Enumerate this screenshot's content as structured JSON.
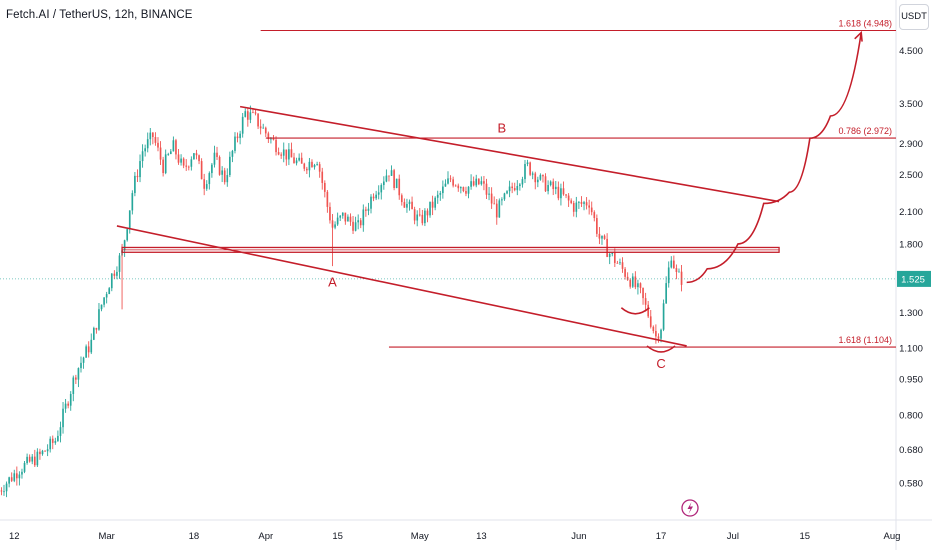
{
  "header": {
    "title": "Fetch.AI / TetherUS, 12h, BINANCE",
    "currency": "USDT"
  },
  "colors": {
    "up": "#26a69a",
    "down": "#ef5350",
    "drawing": "#c41e2a",
    "price_line": "#26a69a",
    "axis_text": "#131722"
  },
  "chart_data": {
    "type": "candlestick",
    "title": "Fetch.AI / TetherUS, 12h, BINANCE",
    "y_scale": "log",
    "ylim": [
      0.54,
      5.3
    ],
    "xlim": [
      "2024-02-10",
      "2024-08-01"
    ],
    "y_ticks": [
      {
        "value": 4.5,
        "label": "4.500"
      },
      {
        "value": 3.5,
        "label": "3.500"
      },
      {
        "value": 2.9,
        "label": "2.900"
      },
      {
        "value": 2.5,
        "label": "2.500"
      },
      {
        "value": 2.1,
        "label": "2.100"
      },
      {
        "value": 1.8,
        "label": "1.800"
      },
      {
        "value": 1.3,
        "label": "1.300"
      },
      {
        "value": 1.1,
        "label": "1.100"
      },
      {
        "value": 0.95,
        "label": "0.950"
      },
      {
        "value": 0.8,
        "label": "0.800"
      },
      {
        "value": 0.68,
        "label": "0.680"
      },
      {
        "value": 0.58,
        "label": "0.580"
      }
    ],
    "x_ticks": [
      {
        "date": "2024-02-12",
        "label": "12"
      },
      {
        "date": "2024-03-01",
        "label": "Mar"
      },
      {
        "date": "2024-03-18",
        "label": "18"
      },
      {
        "date": "2024-04-01",
        "label": "Apr"
      },
      {
        "date": "2024-04-15",
        "label": "15"
      },
      {
        "date": "2024-05-01",
        "label": "May"
      },
      {
        "date": "2024-05-13",
        "label": "13"
      },
      {
        "date": "2024-06-01",
        "label": "Jun"
      },
      {
        "date": "2024-06-17",
        "label": "17"
      },
      {
        "date": "2024-07-01",
        "label": "Jul"
      },
      {
        "date": "2024-07-15",
        "label": "15"
      },
      {
        "date": "2024-08-01",
        "label": "Aug"
      }
    ],
    "last_price": {
      "value": 1.525,
      "label": "1.525"
    },
    "price_path": [
      [
        "2024-02-09",
        0.56
      ],
      [
        "2024-02-13",
        0.62
      ],
      [
        "2024-02-17",
        0.66
      ],
      [
        "2024-02-20",
        0.71
      ],
      [
        "2024-02-22",
        0.83
      ],
      [
        "2024-02-24",
        0.98
      ],
      [
        "2024-02-27",
        1.13
      ],
      [
        "2024-02-29",
        1.35
      ],
      [
        "2024-03-02",
        1.55
      ],
      [
        "2024-03-04",
        1.72
      ],
      [
        "2024-03-06",
        2.3
      ],
      [
        "2024-03-08",
        2.8
      ],
      [
        "2024-03-10",
        3.0
      ],
      [
        "2024-03-12",
        2.6
      ],
      [
        "2024-03-14",
        2.85
      ],
      [
        "2024-03-16",
        2.55
      ],
      [
        "2024-03-18",
        2.8
      ],
      [
        "2024-03-20",
        2.4
      ],
      [
        "2024-03-22",
        2.7
      ],
      [
        "2024-03-24",
        2.45
      ],
      [
        "2024-03-26",
        2.9
      ],
      [
        "2024-03-28",
        3.35
      ],
      [
        "2024-03-30",
        3.25
      ],
      [
        "2024-04-02",
        2.95
      ],
      [
        "2024-04-05",
        2.75
      ],
      [
        "2024-04-08",
        2.6
      ],
      [
        "2024-04-11",
        2.7
      ],
      [
        "2024-04-13",
        2.15
      ],
      [
        "2024-04-14",
        1.95
      ],
      [
        "2024-04-16",
        2.05
      ],
      [
        "2024-04-19",
        1.95
      ],
      [
        "2024-04-22",
        2.3
      ],
      [
        "2024-04-25",
        2.55
      ],
      [
        "2024-04-28",
        2.2
      ],
      [
        "2024-05-01",
        2.0
      ],
      [
        "2024-05-04",
        2.2
      ],
      [
        "2024-05-07",
        2.45
      ],
      [
        "2024-05-10",
        2.35
      ],
      [
        "2024-05-13",
        2.4
      ],
      [
        "2024-05-16",
        2.1
      ],
      [
        "2024-05-19",
        2.35
      ],
      [
        "2024-05-22",
        2.6
      ],
      [
        "2024-05-25",
        2.4
      ],
      [
        "2024-05-28",
        2.3
      ],
      [
        "2024-05-31",
        2.15
      ],
      [
        "2024-06-03",
        2.2
      ],
      [
        "2024-06-05",
        1.85
      ],
      [
        "2024-06-07",
        1.72
      ],
      [
        "2024-06-09",
        1.62
      ],
      [
        "2024-06-11",
        1.52
      ],
      [
        "2024-06-13",
        1.42
      ],
      [
        "2024-06-15",
        1.25
      ],
      [
        "2024-06-16",
        1.16
      ],
      [
        "2024-06-17",
        1.22
      ],
      [
        "2024-06-18",
        1.48
      ],
      [
        "2024-06-19",
        1.72
      ],
      [
        "2024-06-20",
        1.55
      ],
      [
        "2024-06-21",
        1.525
      ]
    ],
    "annotations": {
      "wave_labels": [
        {
          "text": "A",
          "date": "2024-04-14",
          "price": 1.47
        },
        {
          "text": "B",
          "date": "2024-05-17",
          "price": 3.05
        },
        {
          "text": "C",
          "date": "2024-06-17",
          "price": 1.0
        }
      ],
      "fib_levels": [
        {
          "label": "1.618 (4.948)",
          "value": 4.948,
          "from": "2024-03-31"
        },
        {
          "label": "0.786 (2.972)",
          "value": 2.972,
          "from": "2024-04-01"
        },
        {
          "label": "1.618 (1.104)",
          "value": 1.104,
          "from": "2024-04-25"
        }
      ],
      "channel_upper": [
        [
          "2024-03-27",
          3.45
        ],
        [
          "2024-07-10",
          2.2
        ]
      ],
      "channel_lower": [
        [
          "2024-03-03",
          1.96
        ],
        [
          "2024-06-22",
          1.11
        ]
      ],
      "resistance_zone": {
        "low": 1.73,
        "high": 1.77,
        "from": "2024-03-04",
        "to": "2024-07-10"
      },
      "projection": [
        [
          "2024-06-22",
          1.5
        ],
        [
          "2024-06-26",
          1.6
        ],
        [
          "2024-07-02",
          1.8
        ],
        [
          "2024-07-07",
          2.18
        ],
        [
          "2024-07-12",
          2.3
        ],
        [
          "2024-07-16",
          2.97
        ],
        [
          "2024-07-20",
          3.3
        ],
        [
          "2024-07-26",
          4.9
        ]
      ]
    }
  }
}
